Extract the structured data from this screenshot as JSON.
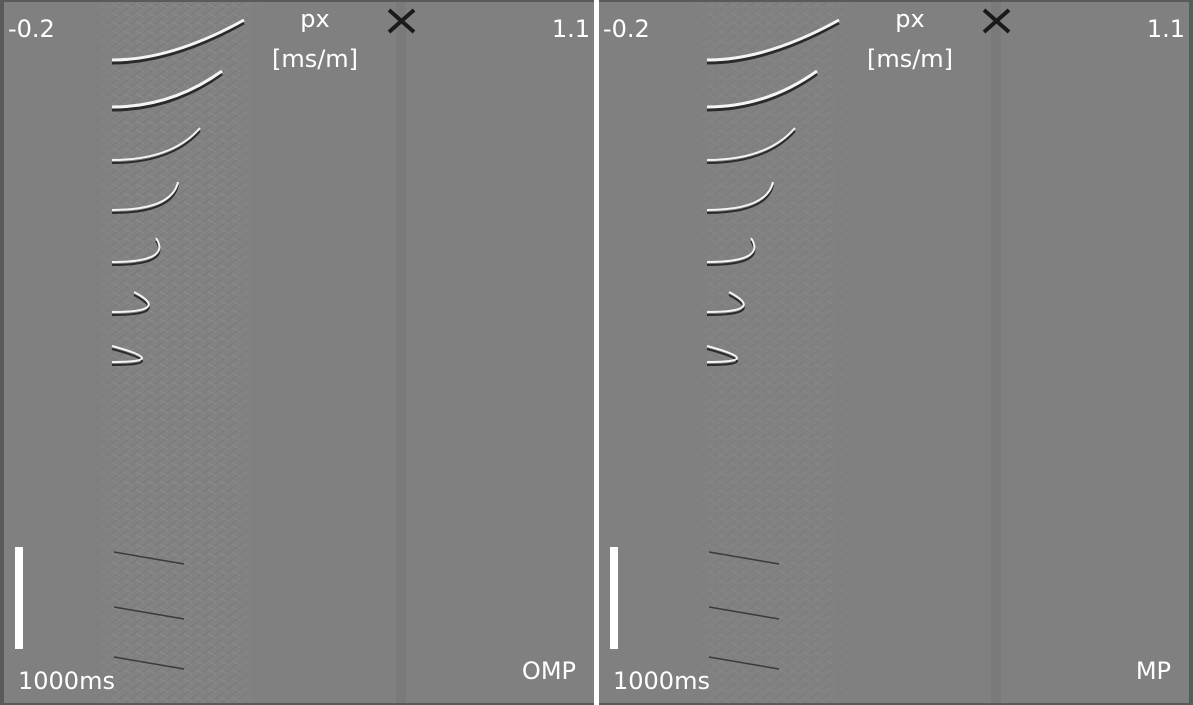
{
  "panels": [
    {
      "left_label": "-0.2",
      "right_label": "1.1",
      "axis_label": [
        "px",
        "[ms/m]"
      ],
      "scale_label": "1000ms",
      "method": "OMP"
    },
    {
      "left_label": "-0.2",
      "right_label": "1.1",
      "axis_label": [
        "px",
        "[ms/m]"
      ],
      "scale_label": "1000ms",
      "method": "MP"
    }
  ]
}
